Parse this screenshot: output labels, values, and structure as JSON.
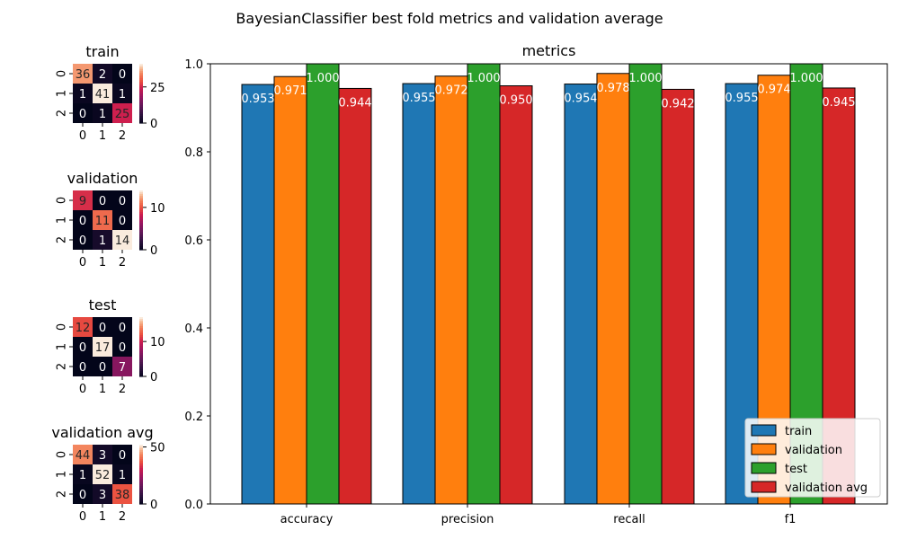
{
  "suptitle": "BayesianClassifier best fold metrics and validation average",
  "chart_data": [
    {
      "type": "heatmap",
      "title": "train",
      "x_ticks": [
        "0",
        "1",
        "2"
      ],
      "y_ticks": [
        "0",
        "1",
        "2"
      ],
      "values": [
        [
          36,
          2,
          0
        ],
        [
          1,
          41,
          1
        ],
        [
          0,
          1,
          25
        ]
      ],
      "colorbar_ticks": [
        0,
        25
      ],
      "vmax": 41
    },
    {
      "type": "heatmap",
      "title": "validation",
      "x_ticks": [
        "0",
        "1",
        "2"
      ],
      "y_ticks": [
        "0",
        "1",
        "2"
      ],
      "values": [
        [
          9,
          0,
          0
        ],
        [
          0,
          11,
          0
        ],
        [
          0,
          1,
          14
        ]
      ],
      "colorbar_ticks": [
        0,
        10
      ],
      "vmax": 14
    },
    {
      "type": "heatmap",
      "title": "test",
      "x_ticks": [
        "0",
        "1",
        "2"
      ],
      "y_ticks": [
        "0",
        "1",
        "2"
      ],
      "values": [
        [
          12,
          0,
          0
        ],
        [
          0,
          17,
          0
        ],
        [
          0,
          0,
          7
        ]
      ],
      "colorbar_ticks": [
        0,
        10
      ],
      "vmax": 17
    },
    {
      "type": "heatmap",
      "title": "validation avg",
      "x_ticks": [
        "0",
        "1",
        "2"
      ],
      "y_ticks": [
        "0",
        "1",
        "2"
      ],
      "values": [
        [
          44,
          3,
          0
        ],
        [
          1,
          52,
          1
        ],
        [
          0,
          3,
          38
        ]
      ],
      "colorbar_ticks": [
        0,
        50
      ],
      "vmax": 52
    },
    {
      "type": "bar",
      "title": "metrics",
      "categories": [
        "accuracy",
        "precision",
        "recall",
        "f1"
      ],
      "series": [
        {
          "name": "train",
          "color": "#1f77b4",
          "values": [
            0.953,
            0.955,
            0.954,
            0.955
          ]
        },
        {
          "name": "validation",
          "color": "#ff7f0e",
          "values": [
            0.971,
            0.972,
            0.978,
            0.974
          ]
        },
        {
          "name": "test",
          "color": "#2ca02c",
          "values": [
            1.0,
            1.0,
            1.0,
            1.0
          ]
        },
        {
          "name": "validation avg",
          "color": "#d62728",
          "values": [
            0.944,
            0.95,
            0.942,
            0.945
          ]
        }
      ],
      "value_labels": [
        [
          "0.953",
          "0.955",
          "0.954",
          "0.955"
        ],
        [
          "0.971",
          "0.972",
          "0.978",
          "0.974"
        ],
        [
          "1.000",
          "1.000",
          "1.000",
          "1.000"
        ],
        [
          "0.944",
          "0.950",
          "0.942",
          "0.945"
        ]
      ],
      "ylim": [
        0,
        1
      ],
      "y_ticks": [
        "0.0",
        "0.2",
        "0.4",
        "0.6",
        "0.8",
        "1.0"
      ],
      "legend_position": "lower-right",
      "grid": false
    }
  ]
}
